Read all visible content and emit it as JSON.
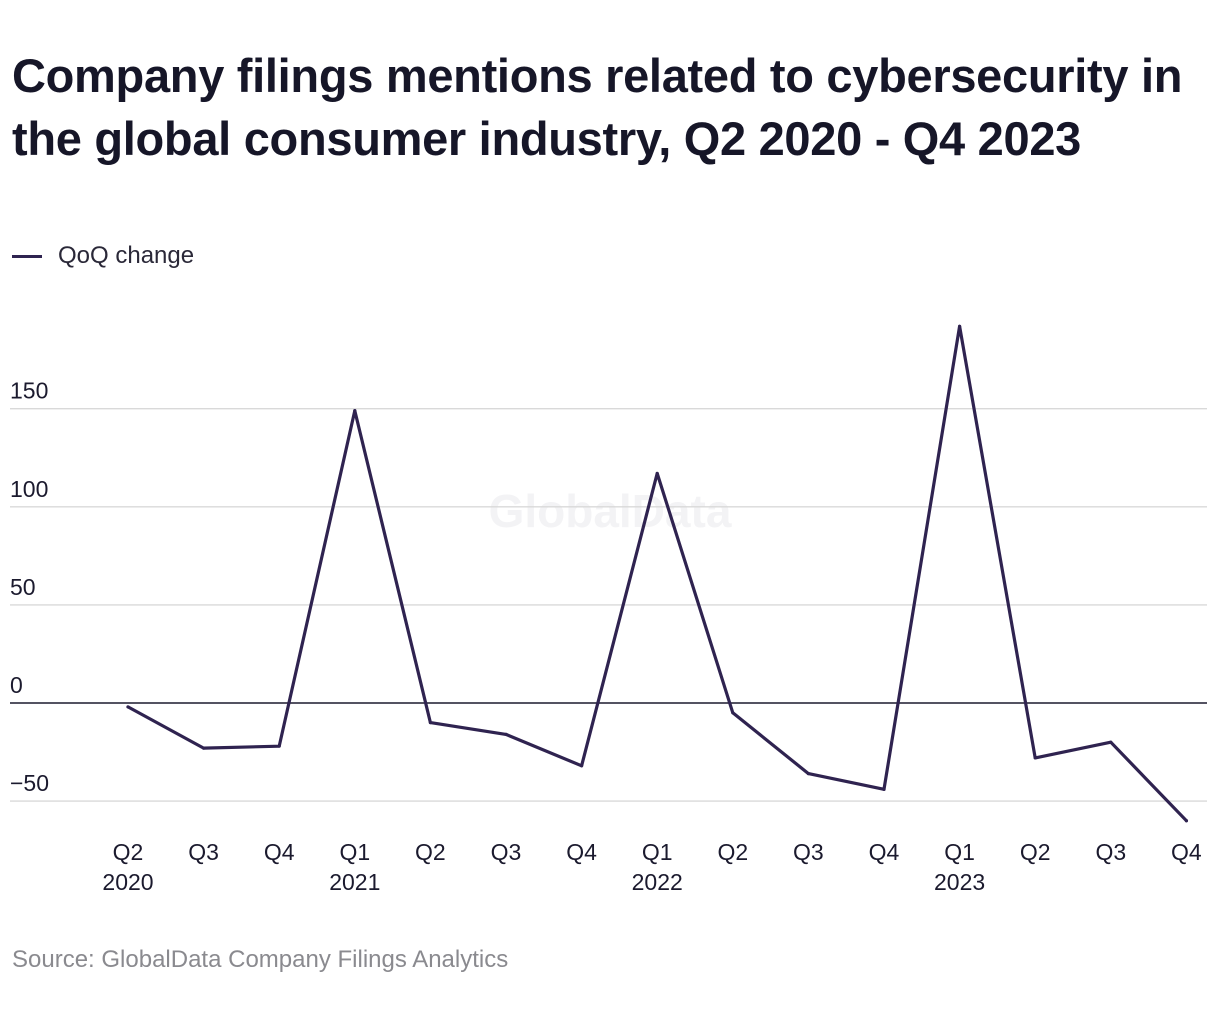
{
  "title": "Company filings mentions related to cybersecurity in the global consumer industry, Q2 2020 - Q4 2023",
  "watermark": "GlobalData",
  "source": "Source: GlobalData Company Filings Analytics",
  "colors": {
    "line": "#2f2350",
    "grid": "#d9d9d9",
    "zero_line": "#1b1a2e",
    "text": "#1b1a2e",
    "muted": "#8a8a8f"
  },
  "chart_data": {
    "type": "line",
    "title": "Company filings mentions related to cybersecurity in the global consumer industry, Q2 2020 - Q4 2023",
    "xlabel": "",
    "ylabel": "",
    "categories": [
      "Q2 2020",
      "Q3 2020",
      "Q4 2020",
      "Q1 2021",
      "Q2 2021",
      "Q3 2021",
      "Q4 2021",
      "Q1 2022",
      "Q2 2022",
      "Q3 2022",
      "Q4 2022",
      "Q1 2023",
      "Q2 2023",
      "Q3 2023",
      "Q4 2023"
    ],
    "tick_labels": [
      {
        "quarter": "Q2",
        "year": "2020"
      },
      {
        "quarter": "Q3",
        "year": ""
      },
      {
        "quarter": "Q4",
        "year": ""
      },
      {
        "quarter": "Q1",
        "year": "2021"
      },
      {
        "quarter": "Q2",
        "year": ""
      },
      {
        "quarter": "Q3",
        "year": ""
      },
      {
        "quarter": "Q4",
        "year": ""
      },
      {
        "quarter": "Q1",
        "year": "2022"
      },
      {
        "quarter": "Q2",
        "year": ""
      },
      {
        "quarter": "Q3",
        "year": ""
      },
      {
        "quarter": "Q4",
        "year": ""
      },
      {
        "quarter": "Q1",
        "year": "2023"
      },
      {
        "quarter": "Q2",
        "year": ""
      },
      {
        "quarter": "Q3",
        "year": ""
      },
      {
        "quarter": "Q4",
        "year": ""
      }
    ],
    "series": [
      {
        "name": "QoQ change",
        "values": [
          -2,
          -23,
          -22,
          149,
          -10,
          -16,
          -32,
          117,
          -5,
          -36,
          -44,
          192,
          -28,
          -20,
          -60
        ]
      }
    ],
    "y_ticks": [
      150,
      100,
      50,
      0,
      -50
    ],
    "y_tick_labels": [
      "150",
      "100",
      "50",
      "0",
      "−50"
    ],
    "ylim": [
      -60,
      192
    ],
    "grid": true,
    "legend": "top-left"
  }
}
